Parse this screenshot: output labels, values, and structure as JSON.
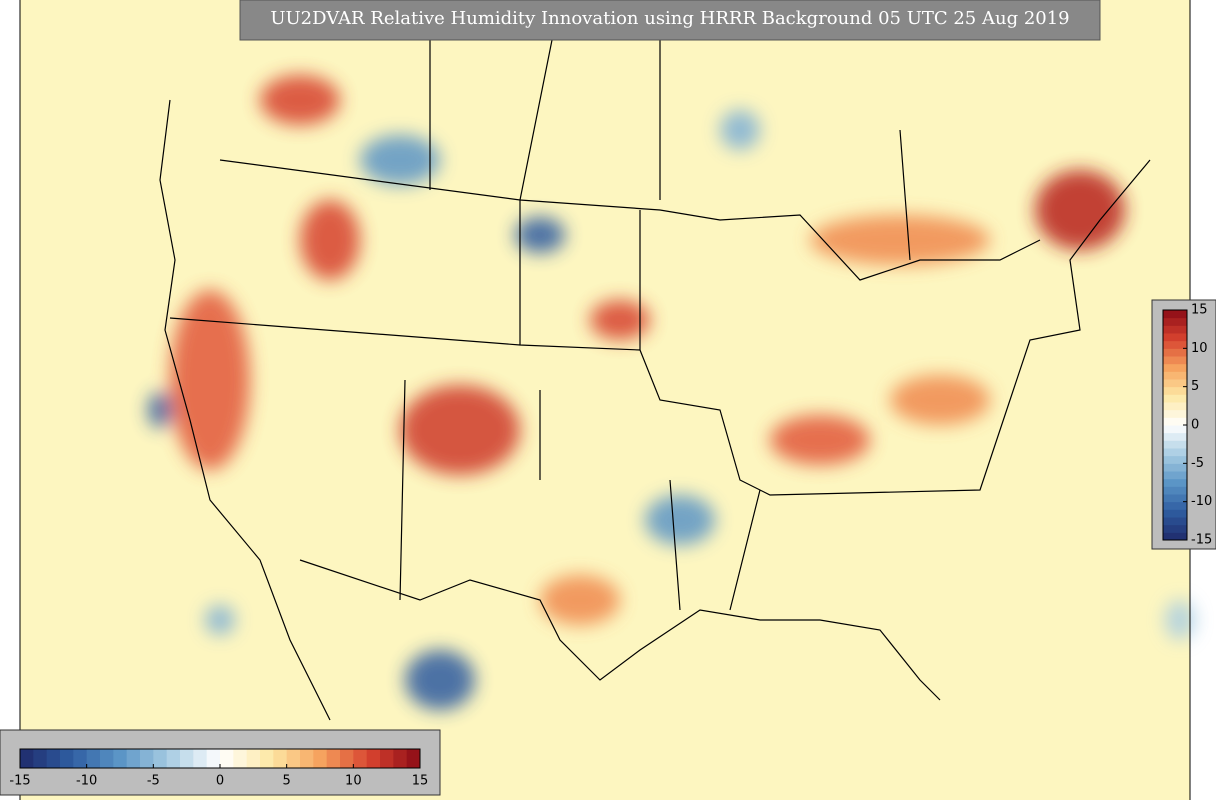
{
  "header": {
    "title": "UU2DVAR Relative Humidity Innovation using HRRR Background 05 UTC 25 Aug 2019"
  },
  "colorbar": {
    "range": [
      -15,
      15
    ],
    "ticks": [
      -15,
      -10,
      -5,
      0,
      5,
      10,
      15
    ],
    "colors": [
      "#1f2a6b",
      "#2e5ca0",
      "#5b95c6",
      "#a9cde3",
      "#ffffff",
      "#fde9a6",
      "#f6a35f",
      "#d7432f",
      "#8b0a16"
    ]
  }
}
